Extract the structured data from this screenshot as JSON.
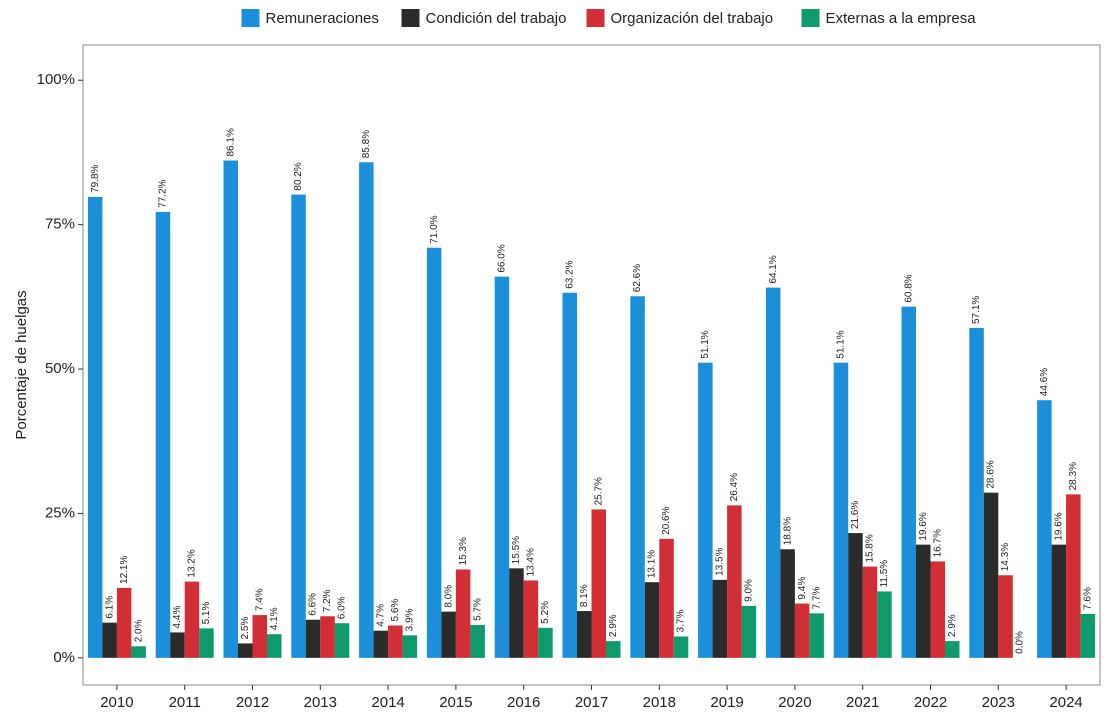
{
  "chart_data": {
    "type": "bar",
    "y_label": "Porcentaje de huelgas",
    "categories": [
      "2010",
      "2011",
      "2012",
      "2013",
      "2014",
      "2015",
      "2016",
      "2017",
      "2018",
      "2019",
      "2020",
      "2021",
      "2022",
      "2023",
      "2024"
    ],
    "series": [
      {
        "name": "Remuneraciones",
        "color": "#1b8fd9",
        "values": [
          79.8,
          77.2,
          86.1,
          80.2,
          85.8,
          71.0,
          66.0,
          63.2,
          62.6,
          51.1,
          64.1,
          51.1,
          60.8,
          57.1,
          44.6
        ],
        "value_labels": [
          "79.8%",
          "77.2%",
          "86.1%",
          "80.2%",
          "85.8%",
          "71.0%",
          "66.0%",
          "63.2%",
          "62.6%",
          "51.1%",
          "64.1%",
          "51.1%",
          "60.8%",
          "57.1%",
          "44.6%"
        ]
      },
      {
        "name": "Condición del trabajo",
        "color": "#2b2b2b",
        "values": [
          6.1,
          4.4,
          2.5,
          6.6,
          4.7,
          8.0,
          15.5,
          8.1,
          13.1,
          13.5,
          18.8,
          21.6,
          19.6,
          28.6,
          19.6
        ],
        "value_labels": [
          "6.1%",
          "4.4%",
          "2.5%",
          "6.6%",
          "4.7%",
          "8.0%",
          "15.5%",
          "8.1%",
          "13.1%",
          "13.5%",
          "18.8%",
          "21.6%",
          "19.6%",
          "28.6%",
          "19.6%"
        ]
      },
      {
        "name": "Organización del trabajo",
        "color": "#d12f35",
        "values": [
          12.1,
          13.2,
          7.4,
          7.2,
          5.6,
          15.3,
          13.4,
          25.7,
          20.6,
          26.4,
          9.4,
          15.8,
          16.7,
          14.3,
          28.3
        ],
        "value_labels": [
          "12.1%",
          "13.2%",
          "7.4%",
          "7.2%",
          "5.6%",
          "15.3%",
          "13.4%",
          "25.7%",
          "20.6%",
          "26.4%",
          "9.4%",
          "15.8%",
          "16.7%",
          "14.3%",
          "28.3%"
        ]
      },
      {
        "name": "Externas a la empresa",
        "color": "#0f9a6e",
        "values": [
          2.0,
          5.1,
          4.1,
          6.0,
          3.9,
          5.7,
          5.2,
          2.9,
          3.7,
          9.0,
          7.7,
          11.5,
          2.9,
          0.0,
          7.6
        ],
        "value_labels": [
          "2.0%",
          "5.1%",
          "4.1%",
          "6.0%",
          "3.9%",
          "5.7%",
          "5.2%",
          "2.9%",
          "3.7%",
          "9.0%",
          "7.7%",
          "11.5%",
          "2.9%",
          "0.0%",
          "7.6%"
        ]
      }
    ],
    "ylim": [
      -4.7,
      106.1
    ],
    "yticks": [
      {
        "value": 0,
        "label": "0%"
      },
      {
        "value": 25,
        "label": "25%"
      },
      {
        "value": 50,
        "label": "50%"
      },
      {
        "value": 75,
        "label": "75%"
      },
      {
        "value": 100,
        "label": "100%"
      }
    ],
    "legend": "top"
  }
}
